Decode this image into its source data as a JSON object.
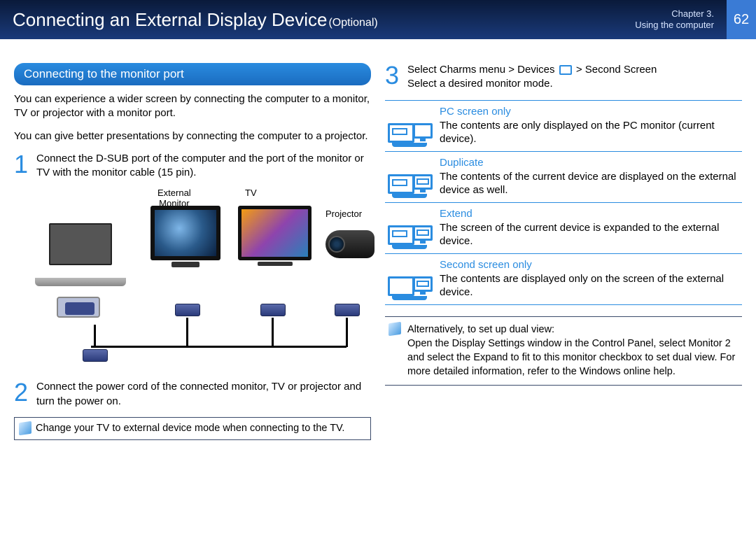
{
  "header": {
    "title_main": "Connecting an External Display Device",
    "title_tag": "(Optional)",
    "chapter_line1": "Chapter 3.",
    "chapter_line2": "Using the computer",
    "page": "62"
  },
  "colors": {
    "accent": "#2a8ce0",
    "header_grad_top": "#0a1a3a",
    "header_grad_bot": "#1a3a7a"
  },
  "left": {
    "section_title": "Connecting to the monitor port",
    "intro1": "You can experience a wider screen by connecting the computer to a monitor, TV or projector with a monitor port.",
    "intro2": "You can give better presentations by connecting the computer to a projector.",
    "step1_num": "1",
    "step1_text": "Connect the D-SUB port of the computer and the port of the monitor or TV with the monitor cable (15 pin).",
    "labels": {
      "external_monitor": "External\nMonitor",
      "tv": "TV",
      "projector": "Projector"
    },
    "step2_num": "2",
    "step2_text": "Connect the power cord of the connected monitor, TV or projector and turn the power on.",
    "note": "Change your TV to external device mode when connecting to the TV."
  },
  "right": {
    "step3_num": "3",
    "step3_line1_a": "Select",
    "step3_line1_b": "Charms menu > Devices",
    "step3_line1_c": " > Second Screen",
    "step3_line2": "Select a desired monitor mode.",
    "modes": [
      {
        "title": "PC screen only",
        "desc": "The contents are only displayed on the PC monitor (current device).",
        "pc_fill": true,
        "ext_fill": false
      },
      {
        "title": "Duplicate",
        "desc": "The contents of the current device are displayed on the external device as well.",
        "pc_fill": true,
        "ext_fill": true
      },
      {
        "title": "Extend",
        "desc": "The screen of the current device is expanded to the external device.",
        "pc_fill": true,
        "ext_fill": true
      },
      {
        "title": "Second screen only",
        "desc": "The contents are displayed only on the screen of the external device.",
        "pc_fill": false,
        "ext_fill": true
      }
    ],
    "alt_note_1": "Alternatively, to set up dual view:",
    "alt_note_2": "Open the Display Settings window in the Control Panel, select Monitor 2 and select the Expand to ﬁt to this monitor checkbox to set dual view. For more detailed information, refer to the Windows online help."
  }
}
